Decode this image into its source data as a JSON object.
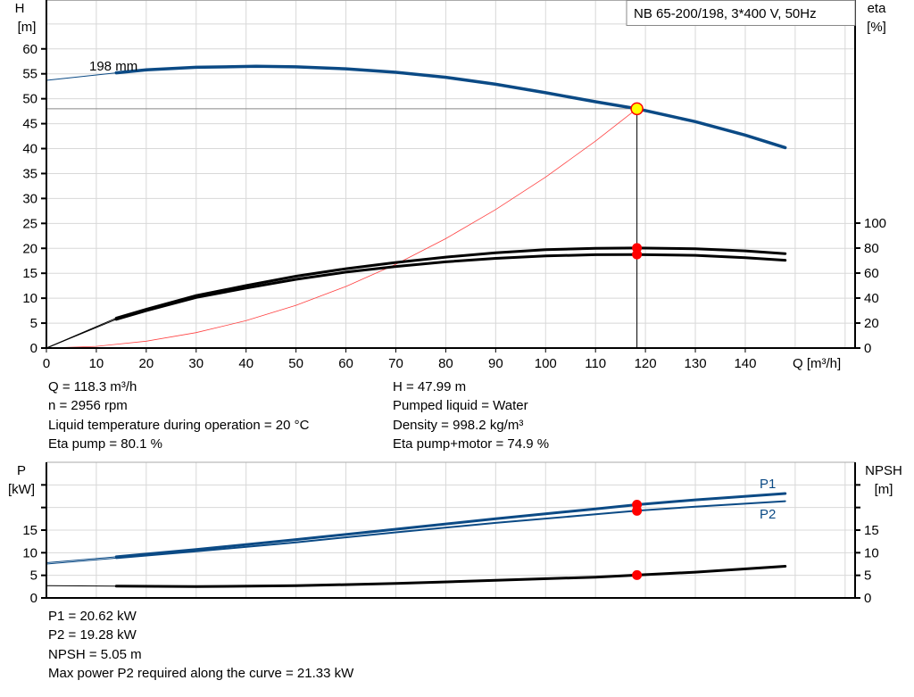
{
  "title_box": "NB 65-200/198, 3*400 V, 50Hz",
  "chart_data": [
    {
      "type": "line",
      "name": "head-efficiency",
      "x_label": "Q [m³/h]",
      "y_left_label": [
        "H",
        "[m]"
      ],
      "y_right_label": [
        "eta",
        "[%]"
      ],
      "x_ticks": [
        0,
        10,
        20,
        30,
        40,
        50,
        60,
        70,
        80,
        90,
        100,
        110,
        120,
        130,
        140
      ],
      "y_left_ticks": [
        0,
        5,
        10,
        15,
        20,
        25,
        30,
        35,
        40,
        45,
        50,
        55,
        60
      ],
      "y_right_ticks": [
        0,
        20,
        40,
        60,
        80,
        100
      ],
      "xlim": [
        0,
        162
      ],
      "ylim_left": [
        0,
        69.8
      ],
      "ylim_right": [
        0,
        278.6
      ],
      "grid": true,
      "impeller_label": "198 mm",
      "head_curve": [
        [
          0,
          53.7
        ],
        [
          14,
          55.2
        ],
        [
          20,
          55.8
        ],
        [
          30,
          56.3
        ],
        [
          42,
          56.5
        ],
        [
          50,
          56.4
        ],
        [
          60,
          56.0
        ],
        [
          70,
          55.3
        ],
        [
          80,
          54.3
        ],
        [
          90,
          52.9
        ],
        [
          100,
          51.2
        ],
        [
          110,
          49.4
        ],
        [
          118.3,
          48.0
        ],
        [
          130,
          45.4
        ],
        [
          140,
          42.7
        ],
        [
          148,
          40.2
        ]
      ],
      "eta_pump_curve": [
        [
          0,
          0
        ],
        [
          14,
          24
        ],
        [
          20,
          31
        ],
        [
          30,
          42
        ],
        [
          40,
          50
        ],
        [
          50,
          57.5
        ],
        [
          60,
          63.5
        ],
        [
          70,
          68.5
        ],
        [
          80,
          72.8
        ],
        [
          90,
          76.3
        ],
        [
          100,
          78.7
        ],
        [
          110,
          79.9
        ],
        [
          118.3,
          80.1
        ],
        [
          130,
          79.5
        ],
        [
          140,
          77.8
        ],
        [
          148,
          75.5
        ]
      ],
      "eta_pump_motor_curve": [
        [
          0,
          0
        ],
        [
          14,
          23
        ],
        [
          20,
          30
        ],
        [
          30,
          40.5
        ],
        [
          40,
          48
        ],
        [
          50,
          55
        ],
        [
          60,
          60.8
        ],
        [
          70,
          65.3
        ],
        [
          80,
          69
        ],
        [
          90,
          71.8
        ],
        [
          100,
          73.7
        ],
        [
          110,
          74.7
        ],
        [
          118.3,
          74.9
        ],
        [
          130,
          74.2
        ],
        [
          140,
          72.4
        ],
        [
          148,
          70.3
        ]
      ],
      "system_curve": [
        [
          0,
          0
        ],
        [
          10,
          0.34
        ],
        [
          20,
          1.37
        ],
        [
          30,
          3.09
        ],
        [
          40,
          5.49
        ],
        [
          50,
          8.57
        ],
        [
          60,
          12.35
        ],
        [
          70,
          16.8
        ],
        [
          80,
          21.95
        ],
        [
          90,
          27.78
        ],
        [
          100,
          34.3
        ],
        [
          110,
          41.5
        ],
        [
          118.3,
          48.0
        ]
      ],
      "operating_point": {
        "q": 118.3,
        "h": 47.99,
        "eta_pump": 80.1,
        "eta_pump_motor": 74.9
      },
      "curve_start_q": 14,
      "colors": {
        "head": "#0b4a85",
        "eta": "#000000",
        "system": "#ff4040",
        "point": "#ff0000",
        "duty_fill": "#ffff00"
      }
    },
    {
      "type": "line",
      "name": "power-npsh",
      "y_left_label": [
        "P",
        "[kW]"
      ],
      "y_right_label": [
        "NPSH",
        "[m]"
      ],
      "y_left_ticks": [
        0,
        5,
        10,
        15
      ],
      "y_right_ticks": [
        0,
        5,
        10,
        15
      ],
      "y_unlabeled_ticks": [
        20,
        25
      ],
      "xlim": [
        0,
        162
      ],
      "ylim": [
        0,
        30
      ],
      "grid": true,
      "series": [
        {
          "name": "P1",
          "points": [
            [
              0,
              7.8
            ],
            [
              14,
              9.1
            ],
            [
              30,
              10.7
            ],
            [
              50,
              12.9
            ],
            [
              70,
              15.2
            ],
            [
              90,
              17.5
            ],
            [
              110,
              19.7
            ],
            [
              118.3,
              20.62
            ],
            [
              130,
              21.7
            ],
            [
              148,
              23.1
            ]
          ]
        },
        {
          "name": "P2",
          "points": [
            [
              0,
              7.5
            ],
            [
              14,
              8.8
            ],
            [
              30,
              10.3
            ],
            [
              50,
              12.3
            ],
            [
              70,
              14.5
            ],
            [
              90,
              16.6
            ],
            [
              110,
              18.5
            ],
            [
              118.3,
              19.28
            ],
            [
              130,
              20.2
            ],
            [
              148,
              21.4
            ]
          ]
        },
        {
          "points": [
            [
              0,
              2.7
            ],
            [
              14,
              2.6
            ],
            [
              30,
              2.5
            ],
            [
              50,
              2.7
            ],
            [
              70,
              3.2
            ],
            [
              90,
              3.9
            ],
            [
              110,
              4.6
            ],
            [
              118.3,
              5.05
            ],
            [
              130,
              5.7
            ],
            [
              148,
              7.0
            ]
          ]
        }
      ],
      "operating_point": {
        "q": 118.3,
        "p1": 20.62,
        "p2": 19.28,
        "npsh": 5.05
      }
    }
  ],
  "info_top_left": [
    "Q = 118.3 m³/h",
    "n = 2956 rpm",
    "Liquid temperature during operation = 20 °C",
    "Eta pump = 80.1 %"
  ],
  "info_top_right": [
    "H = 47.99 m",
    "Pumped liquid = Water",
    "Density = 998.2 kg/m³",
    "Eta pump+motor = 74.9 %"
  ],
  "info_bottom": [
    "P1 = 20.62 kW",
    "P2 = 19.28 kW",
    "NPSH = 5.05 m",
    "Max power P2 required along the curve = 21.33 kW"
  ]
}
